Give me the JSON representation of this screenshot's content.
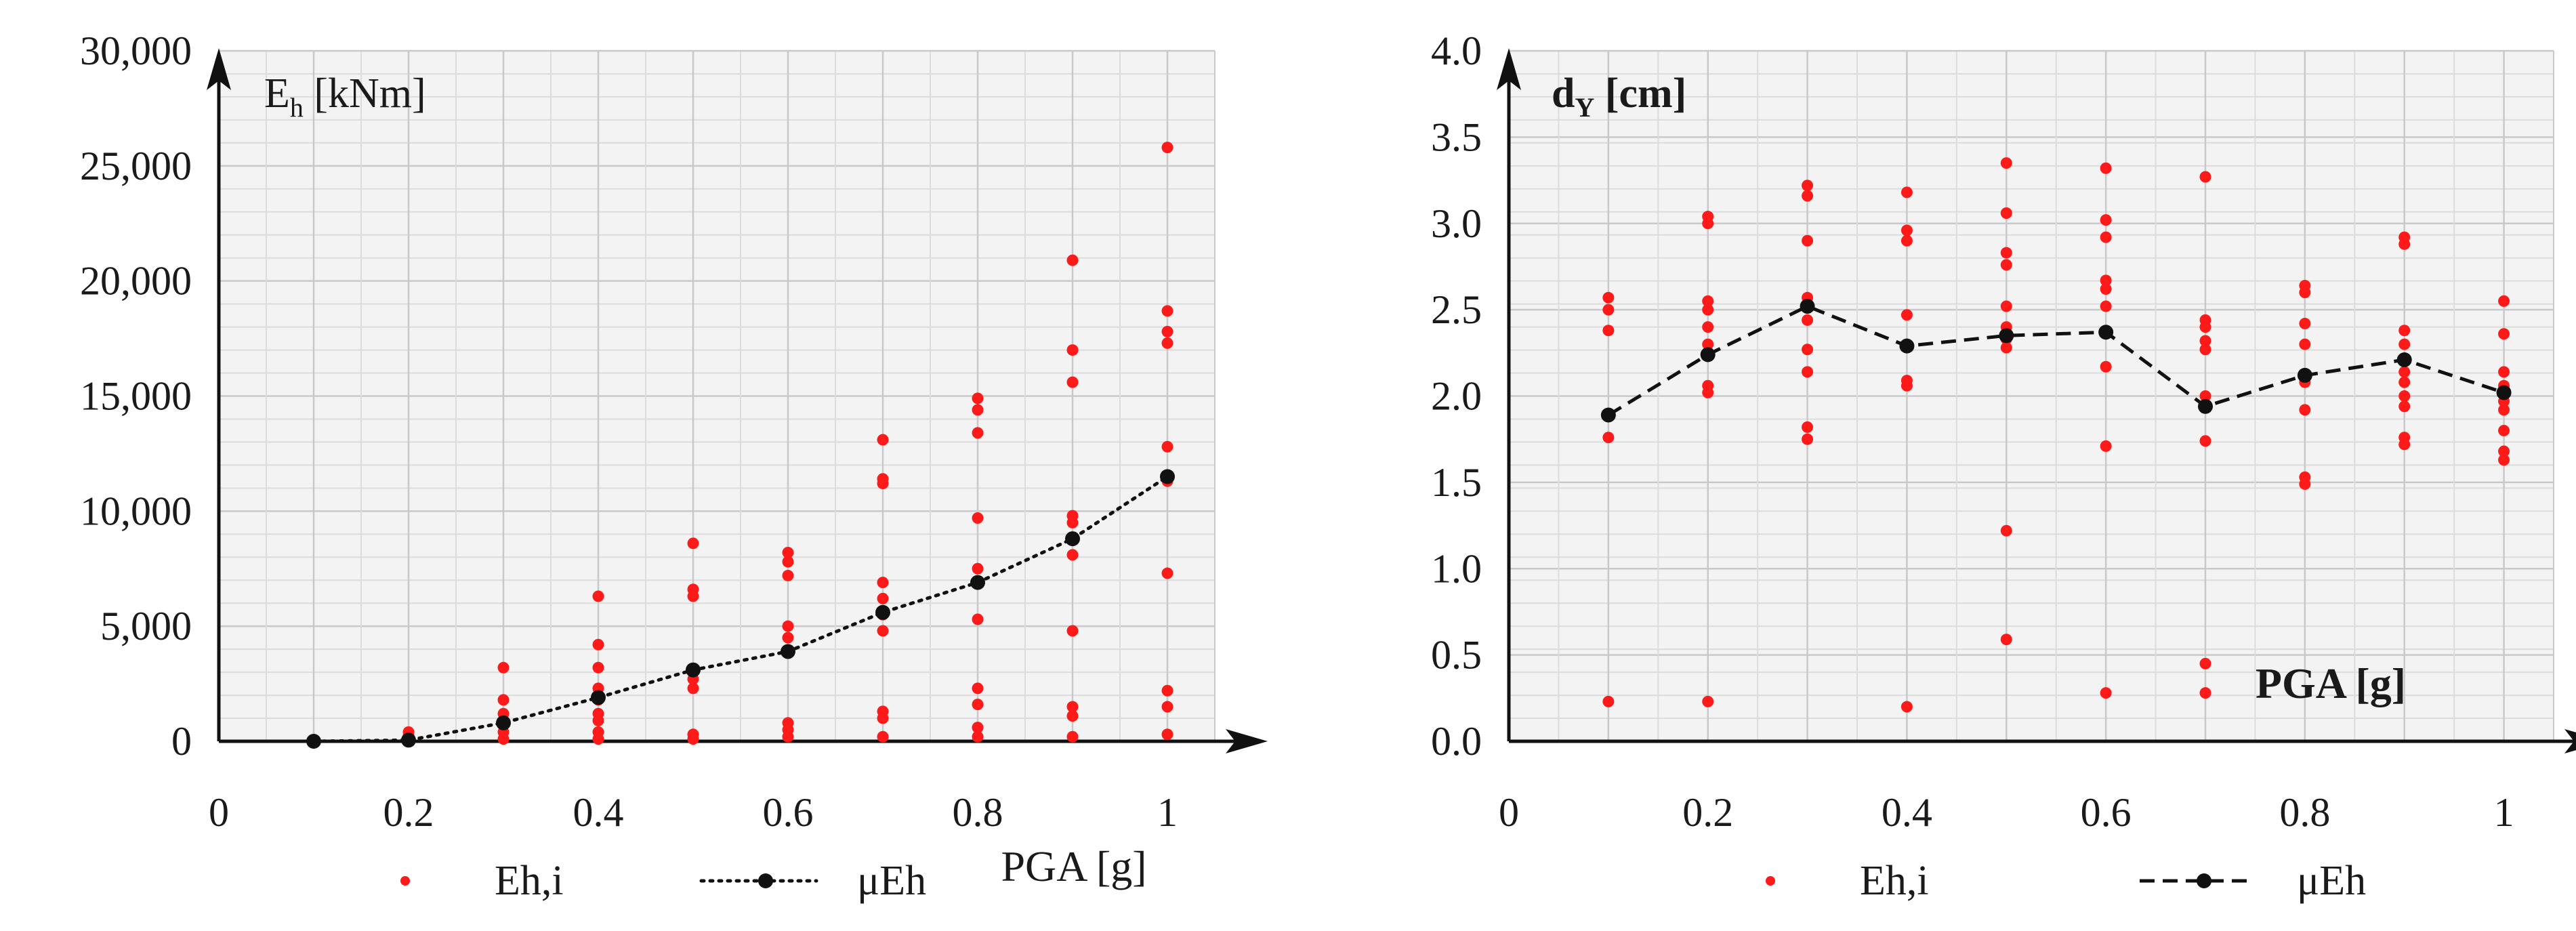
{
  "colors": {
    "plot_bg": "#f3f3f3",
    "grid": "#c9c9c9",
    "axis": "#111111",
    "scatter": "#ff1a1a",
    "mean": "#111111"
  },
  "chart_data": [
    {
      "type": "scatter",
      "id": "left",
      "title": "",
      "ylabel_main": "E",
      "ylabel_sub": "h",
      "ylabel_unit": " [kNm]",
      "xlabel": "PGA [g]",
      "xlim": [
        0,
        1.05
      ],
      "ylim": [
        0,
        30000
      ],
      "xticks": [
        0,
        0.2,
        0.4,
        0.6,
        0.8,
        1
      ],
      "xtick_labels": [
        "0",
        "0.2",
        "0.4",
        "0.6",
        "0.8",
        "1"
      ],
      "yticks": [
        0,
        5000,
        10000,
        15000,
        20000,
        25000,
        30000
      ],
      "ytick_labels": [
        "0",
        "5,000",
        "10,000",
        "15,000",
        "20,000",
        "25,000",
        "30,000"
      ],
      "grid": true,
      "legend": [
        {
          "label": "Eh,i",
          "style": "dot"
        },
        {
          "label": "μEh",
          "style": "dotted-line-marker"
        }
      ],
      "series": [
        {
          "name": "Eh,i",
          "kind": "scatter",
          "points": [
            [
              0.1,
              0
            ],
            [
              0.1,
              0
            ],
            [
              0.2,
              0
            ],
            [
              0.2,
              100
            ],
            [
              0.2,
              250
            ],
            [
              0.2,
              400
            ],
            [
              0.3,
              100
            ],
            [
              0.3,
              400
            ],
            [
              0.3,
              800
            ],
            [
              0.3,
              1200
            ],
            [
              0.3,
              1800
            ],
            [
              0.3,
              3200
            ],
            [
              0.4,
              100
            ],
            [
              0.4,
              400
            ],
            [
              0.4,
              900
            ],
            [
              0.4,
              1200
            ],
            [
              0.4,
              1800
            ],
            [
              0.4,
              2300
            ],
            [
              0.4,
              3200
            ],
            [
              0.4,
              4200
            ],
            [
              0.4,
              6300
            ],
            [
              0.5,
              100
            ],
            [
              0.5,
              300
            ],
            [
              0.5,
              2300
            ],
            [
              0.5,
              2700
            ],
            [
              0.5,
              3000
            ],
            [
              0.5,
              6300
            ],
            [
              0.5,
              6600
            ],
            [
              0.5,
              8600
            ],
            [
              0.6,
              200
            ],
            [
              0.6,
              500
            ],
            [
              0.6,
              800
            ],
            [
              0.6,
              3900
            ],
            [
              0.6,
              4500
            ],
            [
              0.6,
              5000
            ],
            [
              0.6,
              7200
            ],
            [
              0.6,
              7800
            ],
            [
              0.6,
              8200
            ],
            [
              0.7,
              200
            ],
            [
              0.7,
              1000
            ],
            [
              0.7,
              1300
            ],
            [
              0.7,
              4800
            ],
            [
              0.7,
              5500
            ],
            [
              0.7,
              6200
            ],
            [
              0.7,
              6900
            ],
            [
              0.7,
              11200
            ],
            [
              0.7,
              11400
            ],
            [
              0.7,
              13100
            ],
            [
              0.8,
              200
            ],
            [
              0.8,
              600
            ],
            [
              0.8,
              1600
            ],
            [
              0.8,
              2300
            ],
            [
              0.8,
              5300
            ],
            [
              0.8,
              7500
            ],
            [
              0.8,
              9700
            ],
            [
              0.8,
              13400
            ],
            [
              0.8,
              14400
            ],
            [
              0.8,
              14900
            ],
            [
              0.9,
              200
            ],
            [
              0.9,
              1100
            ],
            [
              0.9,
              1500
            ],
            [
              0.9,
              4800
            ],
            [
              0.9,
              8100
            ],
            [
              0.9,
              9500
            ],
            [
              0.9,
              9800
            ],
            [
              0.9,
              15600
            ],
            [
              0.9,
              17000
            ],
            [
              0.9,
              20900
            ],
            [
              1.0,
              300
            ],
            [
              1.0,
              1500
            ],
            [
              1.0,
              2200
            ],
            [
              1.0,
              7300
            ],
            [
              1.0,
              11300
            ],
            [
              1.0,
              12800
            ],
            [
              1.0,
              17300
            ],
            [
              1.0,
              17800
            ],
            [
              1.0,
              18700
            ],
            [
              1.0,
              25800
            ]
          ]
        },
        {
          "name": "μEh",
          "kind": "line",
          "dash": "dotted",
          "x": [
            0.1,
            0.2,
            0.3,
            0.4,
            0.5,
            0.6,
            0.7,
            0.8,
            0.9,
            1.0
          ],
          "y": [
            0,
            50,
            800,
            1900,
            3100,
            3900,
            5600,
            6900,
            8800,
            11500
          ]
        }
      ]
    },
    {
      "type": "scatter",
      "id": "right",
      "title": "",
      "ylabel_main": "d",
      "ylabel_sub": "Y",
      "ylabel_unit": " [cm]",
      "xlabel": "PGA [g]",
      "xlim": [
        0,
        1.05
      ],
      "ylim": [
        0,
        4.0
      ],
      "xticks": [
        0,
        0.2,
        0.4,
        0.6,
        0.8,
        1
      ],
      "xtick_labels": [
        "0",
        "0.2",
        "0.4",
        "0.6",
        "0.8",
        "1"
      ],
      "yticks": [
        0,
        0.5,
        1.0,
        1.5,
        2.0,
        2.5,
        3.0,
        3.5,
        4.0
      ],
      "ytick_labels": [
        "0.0",
        "0.5",
        "1.0",
        "1.5",
        "2.0",
        "2.5",
        "3.0",
        "3.5",
        "4.0"
      ],
      "grid": true,
      "legend": [
        {
          "label": "Eh,i",
          "style": "dot"
        },
        {
          "label": "μEh",
          "style": "dashed-line-marker"
        }
      ],
      "series": [
        {
          "name": "Eh,i",
          "kind": "scatter",
          "points": [
            [
              0.1,
              0.23
            ],
            [
              0.1,
              1.76
            ],
            [
              0.1,
              2.38
            ],
            [
              0.1,
              2.5
            ],
            [
              0.1,
              2.57
            ],
            [
              0.2,
              0.23
            ],
            [
              0.2,
              2.02
            ],
            [
              0.2,
              2.06
            ],
            [
              0.2,
              2.23
            ],
            [
              0.2,
              2.3
            ],
            [
              0.2,
              2.4
            ],
            [
              0.2,
              2.5
            ],
            [
              0.2,
              2.55
            ],
            [
              0.2,
              3.0
            ],
            [
              0.2,
              3.04
            ],
            [
              0.3,
              1.75
            ],
            [
              0.3,
              1.82
            ],
            [
              0.3,
              2.14
            ],
            [
              0.3,
              2.27
            ],
            [
              0.3,
              2.44
            ],
            [
              0.3,
              2.57
            ],
            [
              0.3,
              2.9
            ],
            [
              0.3,
              3.16
            ],
            [
              0.3,
              3.22
            ],
            [
              0.4,
              0.2
            ],
            [
              0.4,
              2.06
            ],
            [
              0.4,
              2.09
            ],
            [
              0.4,
              2.3
            ],
            [
              0.4,
              2.47
            ],
            [
              0.4,
              2.9
            ],
            [
              0.4,
              2.96
            ],
            [
              0.4,
              3.18
            ],
            [
              0.5,
              0.59
            ],
            [
              0.5,
              1.22
            ],
            [
              0.5,
              2.28
            ],
            [
              0.5,
              2.33
            ],
            [
              0.5,
              2.4
            ],
            [
              0.5,
              2.52
            ],
            [
              0.5,
              2.76
            ],
            [
              0.5,
              2.83
            ],
            [
              0.5,
              3.06
            ],
            [
              0.5,
              3.35
            ],
            [
              0.6,
              0.28
            ],
            [
              0.6,
              1.71
            ],
            [
              0.6,
              2.17
            ],
            [
              0.6,
              2.36
            ],
            [
              0.6,
              2.52
            ],
            [
              0.6,
              2.62
            ],
            [
              0.6,
              2.67
            ],
            [
              0.6,
              2.92
            ],
            [
              0.6,
              3.02
            ],
            [
              0.6,
              3.32
            ],
            [
              0.7,
              0.28
            ],
            [
              0.7,
              0.45
            ],
            [
              0.7,
              1.74
            ],
            [
              0.7,
              2.0
            ],
            [
              0.7,
              2.27
            ],
            [
              0.7,
              2.32
            ],
            [
              0.7,
              2.4
            ],
            [
              0.7,
              2.44
            ],
            [
              0.7,
              3.27
            ],
            [
              0.8,
              1.49
            ],
            [
              0.8,
              1.53
            ],
            [
              0.8,
              1.92
            ],
            [
              0.8,
              2.08
            ],
            [
              0.8,
              2.13
            ],
            [
              0.8,
              2.3
            ],
            [
              0.8,
              2.42
            ],
            [
              0.8,
              2.6
            ],
            [
              0.8,
              2.64
            ],
            [
              0.9,
              1.72
            ],
            [
              0.9,
              1.76
            ],
            [
              0.9,
              1.94
            ],
            [
              0.9,
              2.0
            ],
            [
              0.9,
              2.08
            ],
            [
              0.9,
              2.14
            ],
            [
              0.9,
              2.3
            ],
            [
              0.9,
              2.38
            ],
            [
              0.9,
              2.88
            ],
            [
              0.9,
              2.92
            ],
            [
              1.0,
              1.63
            ],
            [
              1.0,
              1.68
            ],
            [
              1.0,
              1.8
            ],
            [
              1.0,
              1.92
            ],
            [
              1.0,
              1.97
            ],
            [
              1.0,
              2.06
            ],
            [
              1.0,
              2.14
            ],
            [
              1.0,
              2.36
            ],
            [
              1.0,
              2.55
            ]
          ]
        },
        {
          "name": "μEh",
          "kind": "line",
          "dash": "dashed",
          "x": [
            0.1,
            0.2,
            0.3,
            0.4,
            0.5,
            0.6,
            0.7,
            0.8,
            0.9,
            1.0
          ],
          "y": [
            1.89,
            2.24,
            2.52,
            2.29,
            2.35,
            2.37,
            1.94,
            2.12,
            2.21,
            2.02
          ]
        }
      ]
    }
  ]
}
